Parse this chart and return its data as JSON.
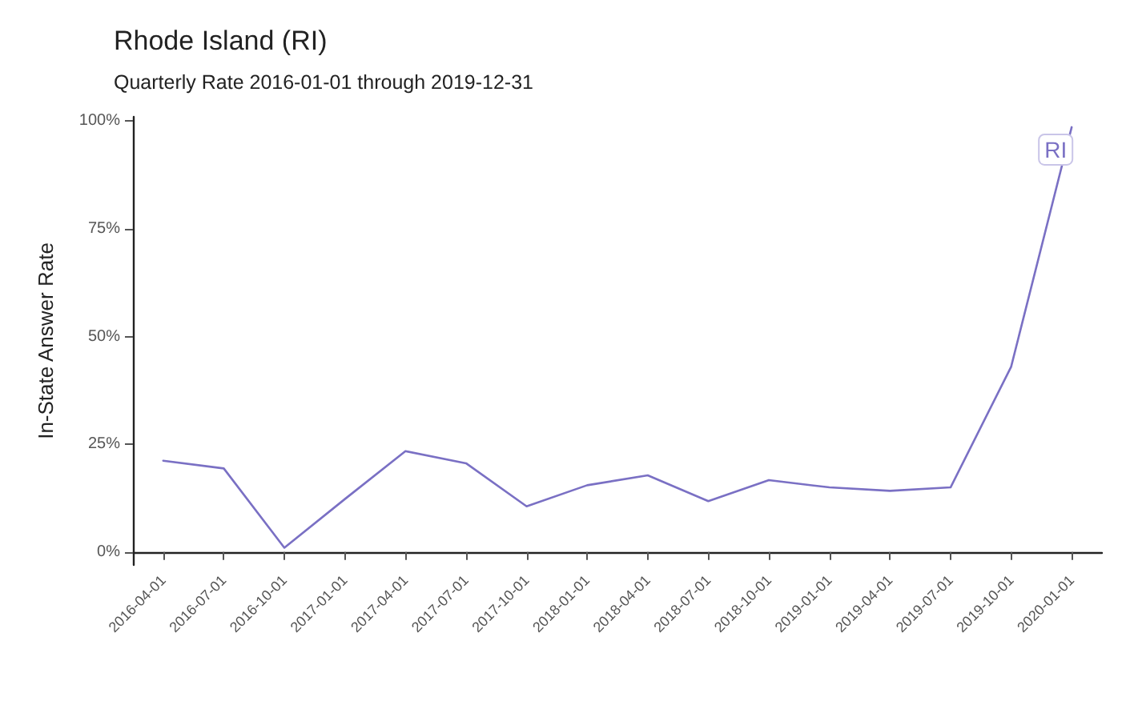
{
  "chart_data": {
    "type": "line",
    "title": "Rhode Island (RI)",
    "subtitle": "Quarterly Rate 2016-01-01 through 2019-12-31",
    "ylabel": "In-State Answer Rate",
    "categories": [
      "2016-04-01",
      "2016-07-01",
      "2016-10-01",
      "2017-01-01",
      "2017-04-01",
      "2017-07-01",
      "2017-10-01",
      "2018-01-01",
      "2018-04-01",
      "2018-07-01",
      "2018-10-01",
      "2019-01-01",
      "2019-04-01",
      "2019-07-01",
      "2019-10-01",
      "2020-01-01"
    ],
    "series": [
      {
        "name": "RI",
        "color": "#7a70c4",
        "values": [
          21.2,
          19.4,
          1,
          12.3,
          23.4,
          20.6,
          10.6,
          15.5,
          17.8,
          11.8,
          16.7,
          15,
          14.2,
          15,
          43,
          98.6
        ]
      }
    ],
    "ylim": [
      -3,
      101
    ],
    "yticks": [
      {
        "value": 0,
        "label": "0%"
      },
      {
        "value": 25,
        "label": "25%"
      },
      {
        "value": 50,
        "label": "50%"
      },
      {
        "value": 75,
        "label": "75%"
      },
      {
        "value": 100,
        "label": "100%"
      }
    ],
    "grid": false,
    "legend": false,
    "marker": "none",
    "line_style": "solid"
  }
}
